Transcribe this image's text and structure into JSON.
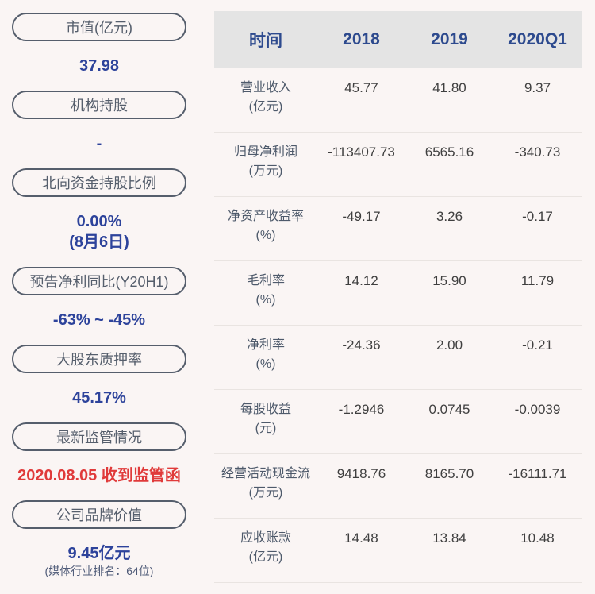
{
  "sidebar": {
    "items": [
      {
        "label": "市值(亿元)",
        "lines": [
          {
            "text": "37.98",
            "style": "blue"
          }
        ]
      },
      {
        "label": "机构持股",
        "lines": [
          {
            "text": "-",
            "style": "blue"
          }
        ]
      },
      {
        "label": "北向资金持股比例",
        "lines": [
          {
            "text": "0.00%",
            "style": "blue"
          },
          {
            "text": "(8月6日)",
            "style": "blue"
          }
        ]
      },
      {
        "label": "预告净利同比(Y20H1)",
        "lines": [
          {
            "text": "-63% ~ -45%",
            "style": "blue"
          }
        ]
      },
      {
        "label": "大股东质押率",
        "lines": [
          {
            "text": "45.17%",
            "style": "blue"
          }
        ]
      },
      {
        "label": "最新监管情况",
        "lines": [
          {
            "text": "2020.08.05 收到监管函",
            "style": "red"
          }
        ]
      },
      {
        "label": "公司品牌价值",
        "lines": [
          {
            "text": "9.45亿元",
            "style": "blue"
          },
          {
            "text": "(媒体行业排名：64位)",
            "style": "subtext"
          }
        ]
      }
    ]
  },
  "table": {
    "header": [
      "时间",
      "2018",
      "2019",
      "2020Q1"
    ],
    "rows": [
      {
        "name": "营业收入",
        "unit": "(亿元)",
        "values": [
          "45.77",
          "41.80",
          "9.37"
        ]
      },
      {
        "name": "归母净利润",
        "unit": "(万元)",
        "values": [
          "-113407.73",
          "6565.16",
          "-340.73"
        ]
      },
      {
        "name": "净资产收益率",
        "unit": "(%)",
        "values": [
          "-49.17",
          "3.26",
          "-0.17"
        ]
      },
      {
        "name": "毛利率",
        "unit": "(%)",
        "values": [
          "14.12",
          "15.90",
          "11.79"
        ]
      },
      {
        "name": "净利率",
        "unit": "(%)",
        "values": [
          "-24.36",
          "2.00",
          "-0.21"
        ]
      },
      {
        "name": "每股收益",
        "unit": "(元)",
        "values": [
          "-1.2946",
          "0.0745",
          "-0.0039"
        ]
      },
      {
        "name": "经营活动现金流",
        "unit": "(万元)",
        "values": [
          "9418.76",
          "8165.70",
          "-16111.71"
        ]
      },
      {
        "name": "应收账款",
        "unit": "(亿元)",
        "values": [
          "14.48",
          "13.84",
          "10.48"
        ]
      }
    ]
  },
  "colors": {
    "page_bg": "#faf5f4",
    "table_header_bg": "#e4e4e4",
    "table_header_text": "#2d4a8e",
    "accent_blue": "#2d439b",
    "alert_red": "#e03a3a",
    "pill_outline": "#555e6c",
    "cell_text": "#3f3f3f",
    "row_label_text": "#4e5a6b"
  },
  "chart_data": {
    "type": "table",
    "title": "",
    "columns": [
      "时间",
      "2018",
      "2019",
      "2020Q1"
    ],
    "rows": [
      [
        "营业收入(亿元)",
        "45.77",
        "41.80",
        "9.37"
      ],
      [
        "归母净利润(万元)",
        "-113407.73",
        "6565.16",
        "-340.73"
      ],
      [
        "净资产收益率(%)",
        "-49.17",
        "3.26",
        "-0.17"
      ],
      [
        "毛利率(%)",
        "14.12",
        "15.90",
        "11.79"
      ],
      [
        "净利率(%)",
        "-24.36",
        "2.00",
        "-0.21"
      ],
      [
        "每股收益(元)",
        "-1.2946",
        "0.0745",
        "-0.0039"
      ],
      [
        "经营活动现金流(万元)",
        "9418.76",
        "8165.70",
        "-16111.71"
      ],
      [
        "应收账款(亿元)",
        "14.48",
        "13.84",
        "10.48"
      ]
    ],
    "stats": [
      {
        "label": "市值(亿元)",
        "value": "37.98"
      },
      {
        "label": "机构持股",
        "value": "-"
      },
      {
        "label": "北向资金持股比例",
        "value": "0.00% (8月6日)"
      },
      {
        "label": "预告净利同比(Y20H1)",
        "value": "-63% ~ -45%"
      },
      {
        "label": "大股东质押率",
        "value": "45.17%"
      },
      {
        "label": "最新监管情况",
        "value": "2020.08.05 收到监管函"
      },
      {
        "label": "公司品牌价值",
        "value": "9.45亿元 (媒体行业排名：64位)"
      }
    ]
  }
}
